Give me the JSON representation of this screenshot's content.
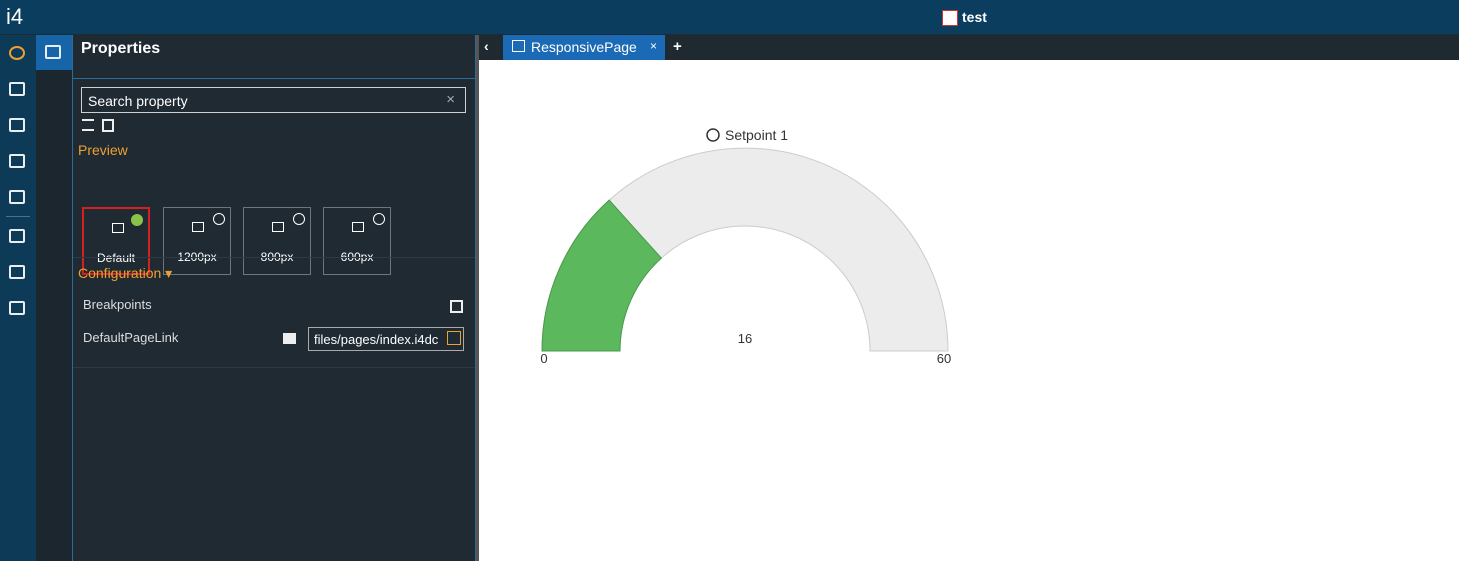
{
  "header": {
    "logo": "i4",
    "title": "test"
  },
  "panel": {
    "title": "Properties",
    "search_placeholder": "Search property",
    "preview_label": "Preview",
    "preview_options": [
      "Default",
      "1200px",
      "800px",
      "600px"
    ],
    "configuration_label": "Configuration",
    "rows": [
      {
        "label": "Breakpoints"
      },
      {
        "label": "DefaultPageLink",
        "value": "files/pages/index.i4dc"
      }
    ]
  },
  "tab": {
    "label": "ResponsivePage"
  },
  "gauge": {
    "title": "Setpoint 1",
    "min": 0,
    "max": 60,
    "value": 16
  }
}
